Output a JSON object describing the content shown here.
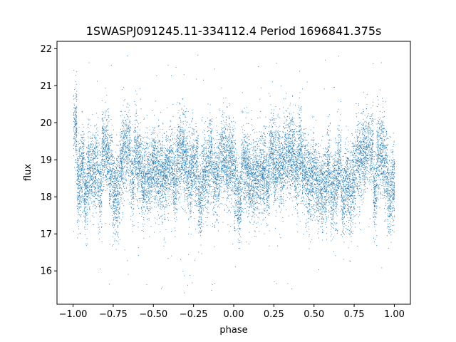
{
  "chart_data": {
    "type": "scatter",
    "title": "1SWASPJ091245.11-334112.4 Period 1696841.375s",
    "xlabel": "phase",
    "ylabel": "flux",
    "xlim": [
      -1.1,
      1.1
    ],
    "ylim": [
      15.1,
      22.2
    ],
    "xticks": [
      -1.0,
      -0.75,
      -0.5,
      -0.25,
      0.0,
      0.25,
      0.5,
      0.75,
      1.0
    ],
    "xtick_labels": [
      "−1.00",
      "−0.75",
      "−0.50",
      "−0.25",
      "0.00",
      "0.25",
      "0.50",
      "0.75",
      "1.00"
    ],
    "yticks": [
      16,
      17,
      18,
      19,
      20,
      21,
      22
    ],
    "ytick_labels": [
      "16",
      "17",
      "18",
      "19",
      "20",
      "21",
      "22"
    ],
    "grid": false,
    "marker_color": "#1f77b4",
    "phase_range": [
      -1.0,
      1.0
    ],
    "flux_mean": 18.7,
    "flux_std": 0.55,
    "flux_outlier_range": [
      15.4,
      21.9
    ],
    "n_points": 16000
  }
}
